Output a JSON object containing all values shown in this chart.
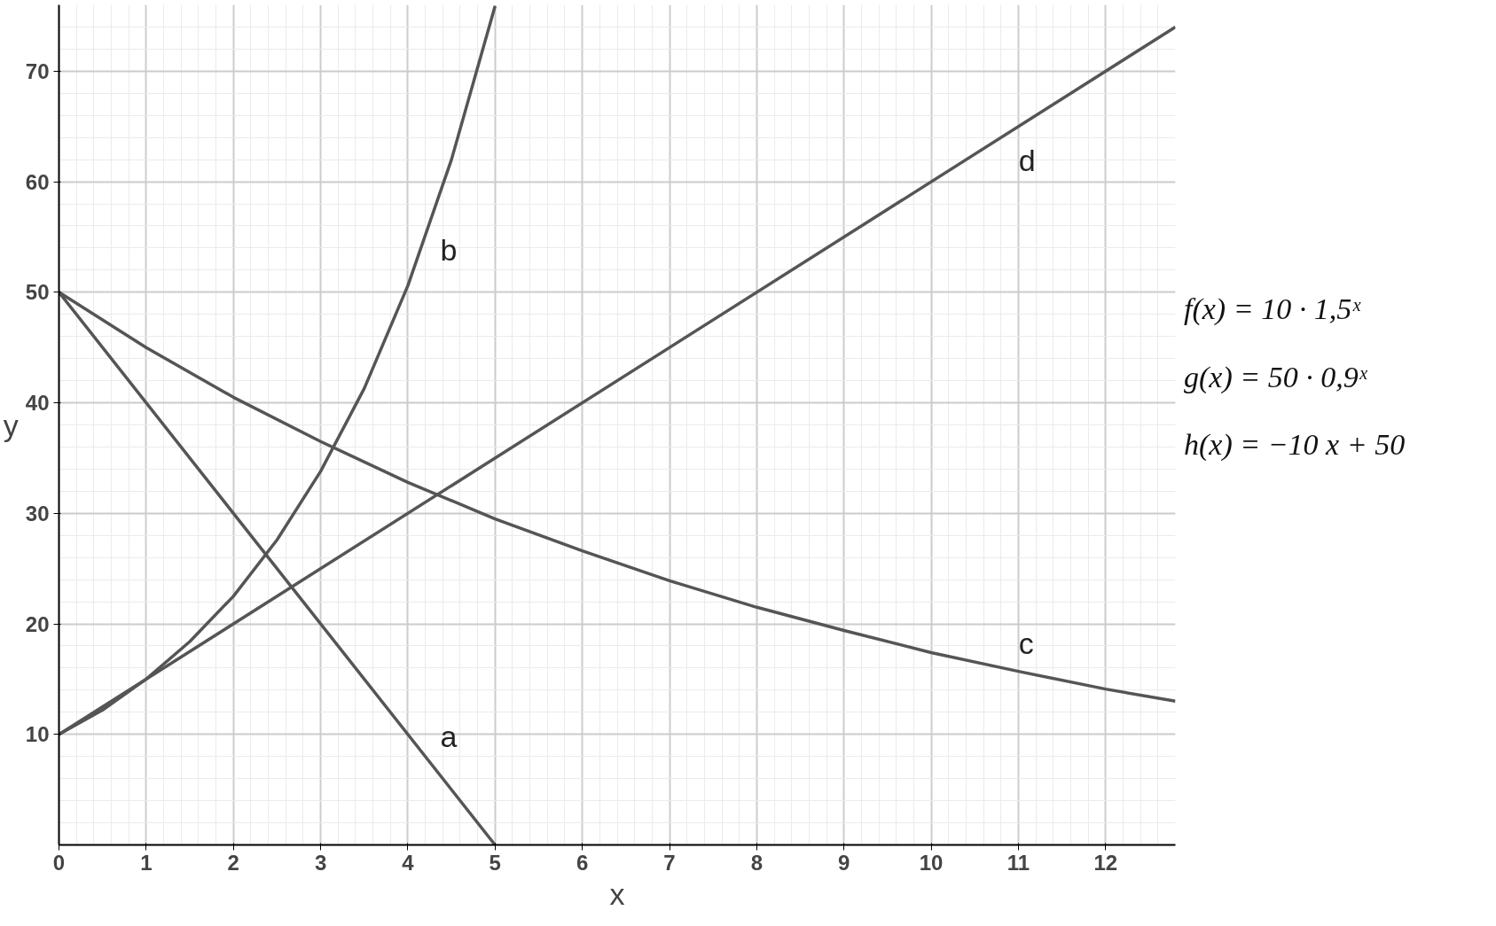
{
  "chart_data": {
    "type": "line",
    "xlabel": "x",
    "ylabel": "y",
    "series": [
      {
        "name": "a",
        "color": "#555555",
        "x": [
          0,
          5
        ],
        "values": [
          50,
          0
        ]
      },
      {
        "name": "b",
        "color": "#555555",
        "x": [
          0,
          0.5,
          1,
          1.5,
          2,
          2.5,
          3,
          3.5,
          4,
          4.5,
          5
        ],
        "values": [
          10,
          12.2,
          15,
          18.4,
          22.5,
          27.6,
          33.8,
          41.3,
          50.6,
          62.0,
          75.9
        ]
      },
      {
        "name": "c",
        "color": "#555555",
        "x": [
          0,
          1,
          2,
          3,
          4,
          5,
          6,
          7,
          8,
          9,
          10,
          11,
          12,
          12.8
        ],
        "values": [
          50,
          45,
          40.5,
          36.5,
          32.8,
          29.5,
          26.6,
          23.9,
          21.5,
          19.4,
          17.4,
          15.7,
          14.1,
          13.0
        ]
      },
      {
        "name": "d",
        "color": "#555555",
        "x": [
          0,
          12.8
        ],
        "values": [
          10,
          74
        ]
      }
    ],
    "xlim": [
      0,
      12.8
    ],
    "ylim": [
      0,
      76
    ],
    "xticks": [
      0,
      1,
      2,
      3,
      4,
      5,
      6,
      7,
      8,
      9,
      10,
      11,
      12
    ],
    "yticks": [
      10,
      20,
      30,
      40,
      50,
      60,
      70
    ],
    "grid": true,
    "marker": "none",
    "line_style": "solid",
    "legend": false,
    "annotations": [
      "f(x) = 10 · 1,5ˣ",
      "g(x) = 50 · 0,9ˣ",
      "h(x) = −10 x + 50"
    ]
  }
}
